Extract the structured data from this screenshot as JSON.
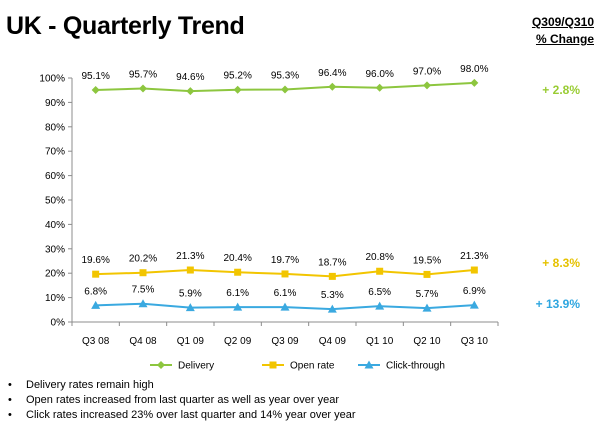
{
  "page": {
    "title": "UK - Quarterly Trend",
    "change_header": [
      "Q309/Q310",
      "% Change"
    ],
    "deltas": [
      {
        "series": "Delivery",
        "text": "+ 2.8%",
        "color": "#99cc33"
      },
      {
        "series": "Open rate",
        "text": "+ 8.3%",
        "color": "#e6c200"
      },
      {
        "series": "Click-through",
        "text": "+ 13.9%",
        "color": "#2ea6e0"
      }
    ],
    "bullets": [
      "Delivery rates remain high",
      "Open rates increased from last quarter as well as year over year",
      "Click rates increased 23% over last quarter and 14% year over year"
    ]
  },
  "chart_data": {
    "type": "line",
    "categories": [
      "Q3 08",
      "Q4 08",
      "Q1 09",
      "Q2 09",
      "Q3 09",
      "Q4 09",
      "Q1 10",
      "Q2 10",
      "Q3 10"
    ],
    "ylim": [
      0,
      100
    ],
    "yticks": [
      0,
      10,
      20,
      30,
      40,
      50,
      60,
      70,
      80,
      90,
      100
    ],
    "ytick_labels": [
      "0%",
      "10%",
      "20%",
      "30%",
      "40%",
      "50%",
      "60%",
      "70%",
      "80%",
      "90%",
      "100%"
    ],
    "grid": false,
    "legend": "bottom",
    "series": [
      {
        "name": "Delivery",
        "color": "#8dc63f",
        "marker": "diamond",
        "values": [
          95.1,
          95.7,
          94.6,
          95.2,
          95.3,
          96.4,
          96.0,
          97.0,
          98.0
        ],
        "labels": [
          "95.1%",
          "95.7%",
          "94.6%",
          "95.2%",
          "95.3%",
          "96.4%",
          "96.0%",
          "97.0%",
          "98.0%"
        ]
      },
      {
        "name": "Open rate",
        "color": "#f2c500",
        "marker": "square",
        "values": [
          19.6,
          20.2,
          21.3,
          20.4,
          19.7,
          18.7,
          20.8,
          19.5,
          21.3
        ],
        "labels": [
          "19.6%",
          "20.2%",
          "21.3%",
          "20.4%",
          "19.7%",
          "18.7%",
          "20.8%",
          "19.5%",
          "21.3%"
        ]
      },
      {
        "name": "Click-through",
        "color": "#3aa9e0",
        "marker": "triangle",
        "values": [
          6.8,
          7.5,
          5.9,
          6.1,
          6.1,
          5.3,
          6.5,
          5.7,
          6.9
        ],
        "labels": [
          "6.8%",
          "7.5%",
          "5.9%",
          "6.1%",
          "6.1%",
          "5.3%",
          "6.5%",
          "5.7%",
          "6.9%"
        ]
      }
    ]
  }
}
